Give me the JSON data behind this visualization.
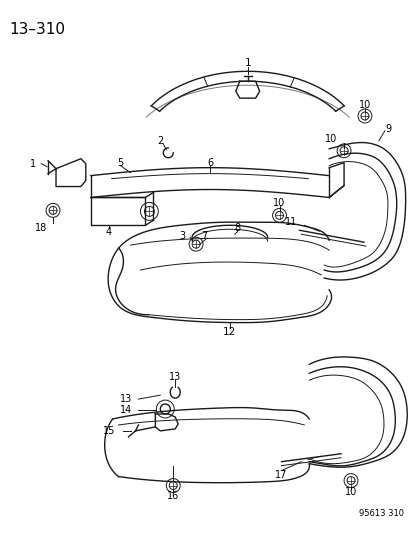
{
  "title": "13–310",
  "subtitle": "95613 310",
  "bg_color": "#ffffff",
  "line_color": "#1a1a1a",
  "figsize": [
    4.14,
    5.33
  ],
  "dpi": 100
}
